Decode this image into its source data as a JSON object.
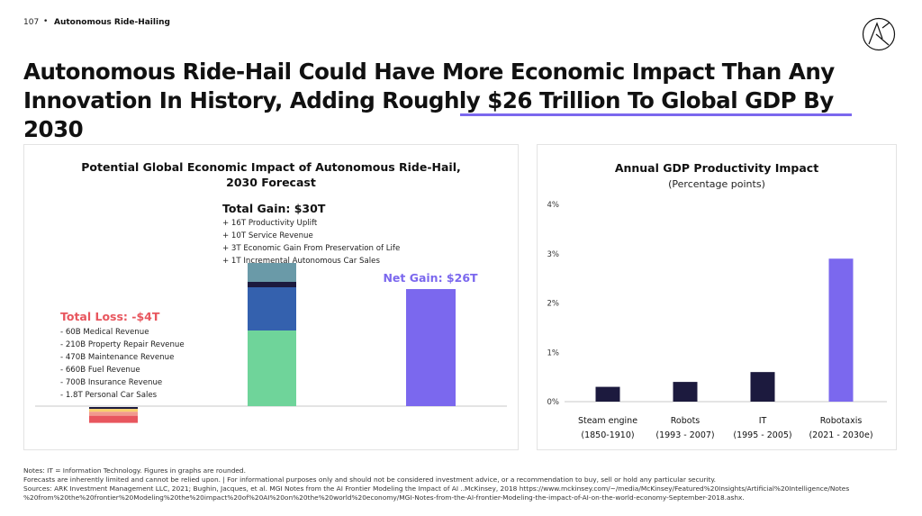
{
  "header": {
    "page_number": "107",
    "separator": "•",
    "section": "Autonomous Ride-Hailing"
  },
  "logo": {
    "name": "ark-logo"
  },
  "title": "Autonomous Ride-Hail Could Have More Economic Impact Than Any Innovation In History, Adding Roughly $26 Trillion To Global GDP By 2030",
  "colors": {
    "accent": "#7b68ee",
    "loss_red": "#e8565e",
    "net_purple": "#7b68ee",
    "productivity_green": "#6fd49a",
    "service_blue": "#3461ae",
    "life_navy": "#1c1a3e",
    "car_sales_teal": "#6a9aa8",
    "loss_yellow": "#f7d06b",
    "loss_pink": "#f19a8e",
    "loss_dark": "#1c1a3e",
    "bar_navy": "#1c1a3e"
  },
  "left_panel": {
    "title_line1": "Potential Global Economic Impact of Autonomous Ride-Hail,",
    "title_line2": "2030 Forecast"
  },
  "right_panel": {
    "title": "Annual GDP Productivity Impact",
    "subtitle": "(Percentage points)"
  },
  "chart_data": [
    {
      "type": "bar",
      "title": "Potential Global Economic Impact of Autonomous Ride-Hail, 2030 Forecast",
      "unit": "$ Trillions",
      "loss": {
        "label": "Total Loss: -$4T",
        "value": -4,
        "items": [
          "- 60B Medical Revenue",
          "- 210B Property Repair Revenue",
          "- 470B Maintenance Revenue",
          "- 660B Fuel Revenue",
          "- 700B Insurance Revenue",
          "- 1.8T Personal Car Sales"
        ],
        "segment_values": [
          -0.06,
          -0.21,
          -0.47,
          -0.66,
          -0.7,
          -1.8
        ]
      },
      "gain": {
        "label": "Total Gain: $30T",
        "value": 30,
        "items": [
          "+ 16T Productivity Uplift",
          "+ 10T Service Revenue",
          "+ 3T Economic Gain From Preservation of Life",
          "+ 1T Incremental Autonomous Car Sales"
        ],
        "segment_values": [
          16,
          10,
          3,
          1
        ]
      },
      "net": {
        "label": "Net Gain: $26T",
        "value": 26
      }
    },
    {
      "type": "bar",
      "title": "Annual GDP Productivity Impact",
      "subtitle": "(Percentage points)",
      "categories": [
        {
          "name": "Steam engine",
          "period": "(1850-1910)"
        },
        {
          "name": "Robots",
          "period": "(1993 - 2007)"
        },
        {
          "name": "IT",
          "period": "(1995 - 2005)"
        },
        {
          "name": "Robotaxis",
          "period": "(2021 - 2030e)"
        }
      ],
      "values": [
        0.3,
        0.4,
        0.6,
        2.9
      ],
      "ylim": [
        0,
        4
      ],
      "yticks": [
        "0%",
        "1%",
        "2%",
        "3%",
        "4%"
      ],
      "grid": false
    }
  ],
  "footer": {
    "line1": "Notes: IT = Information Technology. Figures in graphs are rounded.",
    "line2": "Forecasts are inherently limited and cannot be relied upon. | For informational purposes only and should not be considered investment advice, or a recommendation to buy, sell or hold any particular security.",
    "line3": "Sources: ARK Investment Management LLC, 2021; Bughin, Jacques, et al. MGI Notes from the AI Frontier Modeling the Impact of AI ..McKinsey, 2018 https://www.mckinsey.com/~/media/McKinsey/Featured%20Insights/Artificial%20Intelligence/Notes",
    "line4": "%20from%20the%20frontier%20Modeling%20the%20impact%20of%20AI%20on%20the%20world%20economy/MGI-Notes-from-the-AI-frontier-Modeling-the-impact-of-AI-on-the-world-economy-September-2018.ashx."
  }
}
